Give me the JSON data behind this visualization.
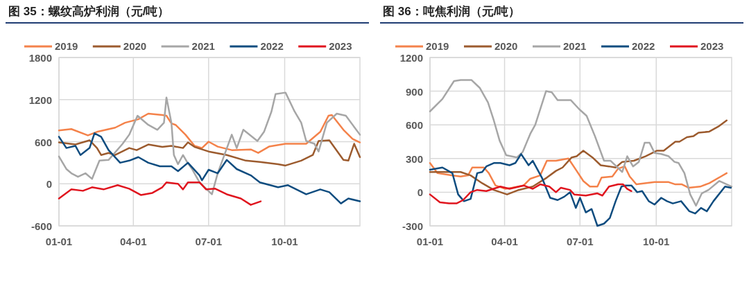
{
  "chart_data": [
    {
      "type": "line",
      "title": "图 35：螺纹高炉利润（元/吨）",
      "legend": "top",
      "grid": true,
      "line_style": "solid",
      "xlim": [
        "--01-01",
        "--12-31"
      ],
      "xticks": [
        {
          "value": "--01-01",
          "label": "01-01"
        },
        {
          "value": "--04-01",
          "label": "04-01"
        },
        {
          "value": "--07-01",
          "label": "07-01"
        },
        {
          "value": "--10-01",
          "label": "10-01"
        }
      ],
      "ylim": [
        -600,
        1800
      ],
      "yticks": [
        -600,
        0,
        600,
        1200,
        1800
      ],
      "series": [
        {
          "name": "2019",
          "color": "#f4824a",
          "x": [
            "--01-01",
            "--01-16",
            "--02-05",
            "--02-16",
            "--03-10",
            "--03-22",
            "--04-07",
            "--04-19",
            "--05-06",
            "--05-11",
            "--05-17",
            "--05-22",
            "--06-03",
            "--06-14",
            "--06-23",
            "--07-01",
            "--07-12",
            "--07-29",
            "--08-21",
            "--08-30",
            "--09-12",
            "--10-02",
            "--10-27",
            "--11-13",
            "--11-23",
            "--11-27",
            "--12-11",
            "--12-22",
            "--12-31"
          ],
          "values": [
            760,
            780,
            690,
            740,
            800,
            870,
            920,
            1000,
            980,
            970,
            860,
            840,
            700,
            540,
            510,
            600,
            530,
            480,
            490,
            440,
            530,
            570,
            570,
            740,
            970,
            980,
            770,
            640,
            590
          ]
        },
        {
          "name": "2020",
          "color": "#9c5b2e",
          "x": [
            "--01-01",
            "--01-21",
            "--02-07",
            "--02-16",
            "--02-21",
            "--03-02",
            "--03-10",
            "--03-27",
            "--04-05",
            "--04-19",
            "--05-06",
            "--05-17",
            "--05-31",
            "--06-06",
            "--06-14",
            "--07-01",
            "--07-23",
            "--08-15",
            "--09-01",
            "--09-23",
            "--10-02",
            "--10-21",
            "--11-04",
            "--11-11",
            "--11-24",
            "--12-11",
            "--12-17",
            "--12-24",
            "--12-31"
          ],
          "values": [
            590,
            560,
            620,
            510,
            410,
            440,
            410,
            510,
            480,
            560,
            525,
            540,
            510,
            590,
            525,
            460,
            410,
            330,
            310,
            280,
            260,
            330,
            410,
            610,
            620,
            340,
            330,
            570,
            380
          ]
        },
        {
          "name": "2021",
          "color": "#a6a6a6",
          "x": [
            "--01-01",
            "--01-10",
            "--01-16",
            "--01-24",
            "--02-02",
            "--02-10",
            "--02-19",
            "--03-02",
            "--03-19",
            "--03-27",
            "--04-06",
            "--04-19",
            "--04-30",
            "--05-08",
            "--05-11",
            "--05-17",
            "--05-20",
            "--05-25",
            "--05-31",
            "--06-05",
            "--06-11",
            "--06-20",
            "--07-05",
            "--07-12",
            "--07-29",
            "--08-04",
            "--08-12",
            "--08-29",
            "--09-06",
            "--09-15",
            "--09-20",
            "--10-02",
            "--10-13",
            "--10-21",
            "--10-27",
            "--11-06",
            "--11-11",
            "--11-21",
            "--12-03",
            "--12-14",
            "--12-31"
          ],
          "values": [
            390,
            210,
            150,
            100,
            150,
            70,
            330,
            340,
            570,
            700,
            970,
            840,
            770,
            870,
            1230,
            870,
            410,
            280,
            410,
            310,
            210,
            20,
            -150,
            150,
            700,
            510,
            770,
            610,
            740,
            1030,
            1280,
            1300,
            1030,
            870,
            610,
            570,
            460,
            870,
            1000,
            970,
            700
          ]
        },
        {
          "name": "2022",
          "color": "#0e4c7f",
          "x": [
            "--01-01",
            "--01-10",
            "--01-21",
            "--01-27",
            "--02-07",
            "--02-13",
            "--02-21",
            "--03-02",
            "--03-16",
            "--03-27",
            "--04-07",
            "--04-19",
            "--05-03",
            "--05-17",
            "--05-25",
            "--06-06",
            "--06-20",
            "--06-23",
            "--07-01",
            "--07-12",
            "--07-23",
            "--08-04",
            "--08-21",
            "--09-01",
            "--09-23",
            "--10-05",
            "--10-27",
            "--11-13",
            "--11-24",
            "--12-08",
            "--12-17",
            "--12-31"
          ],
          "values": [
            670,
            510,
            540,
            410,
            510,
            720,
            670,
            480,
            300,
            330,
            380,
            300,
            250,
            250,
            180,
            300,
            120,
            50,
            200,
            150,
            340,
            210,
            120,
            20,
            -50,
            -20,
            -150,
            -80,
            -120,
            -280,
            -210,
            -250
          ]
        },
        {
          "name": "2023",
          "color": "#e0141e",
          "x": [
            "--01-01",
            "--01-16",
            "--01-30",
            "--02-10",
            "--02-24",
            "--03-13",
            "--03-27",
            "--04-10",
            "--04-24",
            "--05-06",
            "--05-11",
            "--05-25",
            "--05-31",
            "--06-06",
            "--06-20",
            "--06-28",
            "--07-09",
            "--07-23",
            "--08-09",
            "--08-21",
            "--09-02"
          ],
          "values": [
            -210,
            -80,
            -100,
            -50,
            -80,
            -20,
            -70,
            -160,
            -130,
            -50,
            20,
            0,
            -80,
            20,
            20,
            -80,
            -70,
            -150,
            -210,
            -300,
            -250
          ]
        }
      ]
    },
    {
      "type": "line",
      "title": "图 36：吨焦利润（元/吨）",
      "legend": "top",
      "grid": true,
      "line_style": "solid",
      "xlim": [
        "--01-01",
        "--12-31"
      ],
      "xticks": [
        {
          "value": "--01-01",
          "label": "01-01"
        },
        {
          "value": "--04-01",
          "label": "04-01"
        },
        {
          "value": "--07-01",
          "label": "07-01"
        },
        {
          "value": "--10-01",
          "label": "10-01"
        }
      ],
      "ylim": [
        -300,
        1200
      ],
      "yticks": [
        -300,
        0,
        300,
        600,
        900,
        1200
      ],
      "series": [
        {
          "name": "2019",
          "color": "#f4824a",
          "x": [
            "--01-01",
            "--01-10",
            "--01-27",
            "--02-07",
            "--02-16",
            "--02-21",
            "--03-07",
            "--03-13",
            "--03-21",
            "--04-02",
            "--04-10",
            "--04-24",
            "--05-02",
            "--05-14",
            "--05-22",
            "--06-02",
            "--06-17",
            "--06-27",
            "--07-05",
            "--07-13",
            "--07-22",
            "--07-27",
            "--08-09",
            "--08-16",
            "--08-24",
            "--08-30",
            "--09-07",
            "--09-29",
            "--10-16",
            "--10-24",
            "--11-01",
            "--11-09",
            "--11-23",
            "--12-04",
            "--12-18",
            "--12-25"
          ],
          "values": [
            260,
            170,
            150,
            140,
            150,
            220,
            220,
            170,
            60,
            30,
            40,
            60,
            120,
            150,
            280,
            280,
            300,
            190,
            100,
            50,
            50,
            130,
            140,
            210,
            230,
            140,
            70,
            90,
            90,
            70,
            70,
            40,
            50,
            80,
            140,
            170
          ]
        },
        {
          "name": "2020",
          "color": "#9c5b2e",
          "x": [
            "--01-01",
            "--02-07",
            "--02-19",
            "--03-05",
            "--03-19",
            "--04-04",
            "--04-18",
            "--05-05",
            "--05-22",
            "--06-02",
            "--06-10",
            "--06-21",
            "--06-27",
            "--07-05",
            "--07-16",
            "--07-26",
            "--08-05",
            "--08-13",
            "--08-21",
            "--09-04",
            "--09-18",
            "--10-02",
            "--10-10",
            "--10-24",
            "--10-29",
            "--11-07",
            "--11-15",
            "--11-21",
            "--12-04",
            "--12-16",
            "--12-25"
          ],
          "values": [
            180,
            180,
            150,
            80,
            20,
            -20,
            20,
            50,
            130,
            190,
            220,
            310,
            320,
            370,
            310,
            240,
            230,
            220,
            270,
            280,
            320,
            370,
            370,
            450,
            450,
            490,
            500,
            530,
            540,
            590,
            640
          ]
        },
        {
          "name": "2021",
          "color": "#a6a6a6",
          "x": [
            "--01-01",
            "--01-16",
            "--01-30",
            "--02-07",
            "--02-20",
            "--03-02",
            "--03-12",
            "--03-19",
            "--03-26",
            "--04-03",
            "--04-16",
            "--04-23",
            "--05-02",
            "--05-08",
            "--05-21",
            "--05-28",
            "--06-04",
            "--06-11",
            "--06-20",
            "--06-30",
            "--07-09",
            "--07-19",
            "--07-30",
            "--08-07",
            "--08-21",
            "--08-27",
            "--09-03",
            "--09-10",
            "--09-17",
            "--09-23",
            "--09-29",
            "--10-07",
            "--10-16",
            "--10-23",
            "--10-28",
            "--11-04",
            "--11-11",
            "--11-18",
            "--11-25",
            "--12-03",
            "--12-16",
            "--12-31"
          ],
          "values": [
            720,
            830,
            990,
            1000,
            1000,
            930,
            800,
            640,
            460,
            330,
            310,
            360,
            520,
            600,
            900,
            890,
            820,
            820,
            820,
            740,
            680,
            500,
            280,
            280,
            180,
            320,
            230,
            270,
            440,
            440,
            350,
            340,
            320,
            270,
            260,
            170,
            -20,
            -120,
            -10,
            20,
            100,
            50
          ]
        },
        {
          "name": "2022",
          "color": "#0e4c7f",
          "x": [
            "--01-01",
            "--01-16",
            "--01-28",
            "--02-04",
            "--02-11",
            "--02-19",
            "--02-27",
            "--03-05",
            "--03-10",
            "--03-19",
            "--03-27",
            "--04-07",
            "--04-14",
            "--04-21",
            "--04-30",
            "--05-05",
            "--05-16",
            "--05-26",
            "--06-04",
            "--06-12",
            "--06-19",
            "--06-26",
            "--07-01",
            "--07-08",
            "--07-15",
            "--07-22",
            "--07-30",
            "--08-06",
            "--08-13",
            "--08-20",
            "--08-25",
            "--09-01",
            "--09-08",
            "--09-14",
            "--09-22",
            "--09-29",
            "--10-07",
            "--10-14",
            "--10-21",
            "--10-31",
            "--11-10",
            "--11-17",
            "--11-24",
            "--12-01",
            "--12-09",
            "--12-23",
            "--12-30"
          ],
          "values": [
            200,
            220,
            170,
            -20,
            -80,
            -60,
            170,
            180,
            230,
            260,
            260,
            240,
            260,
            340,
            240,
            280,
            130,
            -50,
            -70,
            -40,
            0,
            -140,
            -50,
            -180,
            -150,
            -300,
            -280,
            -230,
            -80,
            50,
            60,
            60,
            0,
            10,
            -80,
            -110,
            -50,
            -80,
            -100,
            -80,
            -170,
            -190,
            -140,
            -170,
            -80,
            50,
            40
          ]
        },
        {
          "name": "2023",
          "color": "#e0141e",
          "x": [
            "--01-01",
            "--01-13",
            "--01-24",
            "--02-02",
            "--02-10",
            "--02-19",
            "--02-27",
            "--03-10",
            "--03-27",
            "--04-07",
            "--04-24",
            "--05-05",
            "--05-14",
            "--05-25",
            "--06-02",
            "--06-08",
            "--06-19",
            "--06-24",
            "--07-08",
            "--07-22",
            "--07-28",
            "--08-05",
            "--08-16",
            "--08-22",
            "--08-27",
            "--09-01"
          ],
          "values": [
            -20,
            -90,
            -100,
            -100,
            -70,
            0,
            20,
            10,
            50,
            30,
            60,
            30,
            70,
            50,
            0,
            40,
            20,
            -20,
            -30,
            -10,
            -30,
            50,
            70,
            70,
            30,
            10
          ]
        }
      ]
    }
  ]
}
